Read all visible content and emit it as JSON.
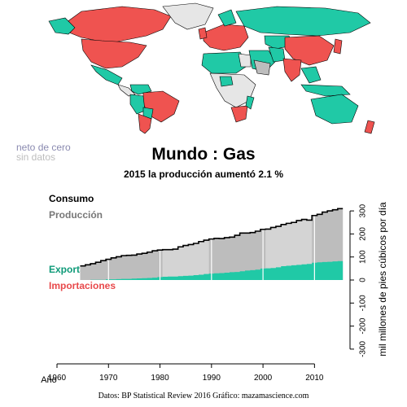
{
  "title": "Mundo :  Gas",
  "subtitle": "2015 la producción aumentó 2.1 %",
  "legend": {
    "net_zero": "neto de cero",
    "no_data": "sin datos"
  },
  "series_labels": {
    "consumption": "Consumo",
    "production": "Producción",
    "exports": "Exportaciones",
    "imports": "Importaciones"
  },
  "source": "Datos: BP Statistical Review 2016   Gráfico: mazamascience.com",
  "colors": {
    "exports": "#20c9a6",
    "imports": "#ef5350",
    "production": "#bdbdbd",
    "production_light": "#d4d4d4",
    "consumption": "#000000",
    "net_zero": "#8a8ab0",
    "no_data": "#e6e6e6"
  },
  "chart_data": {
    "type": "area",
    "xlabel": "Año",
    "ylabel": "mil millones de pies cúbicos por día",
    "xlim": [
      1960,
      2015
    ],
    "ylim": [
      -300,
      340
    ],
    "x_ticks": [
      1960,
      1970,
      1980,
      1990,
      2000,
      2010
    ],
    "y_ticks": [
      -300,
      -200,
      -100,
      0,
      100,
      200,
      300
    ],
    "years": [
      1965,
      1966,
      1967,
      1968,
      1969,
      1970,
      1971,
      1972,
      1973,
      1974,
      1975,
      1976,
      1977,
      1978,
      1979,
      1980,
      1981,
      1982,
      1983,
      1984,
      1985,
      1986,
      1987,
      1988,
      1989,
      1990,
      1991,
      1992,
      1993,
      1994,
      1995,
      1996,
      1997,
      1998,
      1999,
      2000,
      2001,
      2002,
      2003,
      2004,
      2005,
      2006,
      2007,
      2008,
      2009,
      2010,
      2011,
      2012,
      2013,
      2014,
      2015
    ],
    "series": [
      {
        "name": "Consumo",
        "values": [
          61,
          66,
          71,
          77,
          84,
          90,
          96,
          101,
          106,
          107,
          108,
          113,
          116,
          121,
          127,
          130,
          132,
          132,
          134,
          144,
          150,
          154,
          159,
          167,
          173,
          178,
          181,
          180,
          184,
          186,
          194,
          204,
          204,
          206,
          212,
          220,
          221,
          228,
          233,
          241,
          246,
          250,
          258,
          263,
          260,
          280,
          285,
          295,
          300,
          305,
          310
        ]
      },
      {
        "name": "Producción",
        "values": [
          61,
          66,
          71,
          77,
          84,
          90,
          96,
          101,
          106,
          107,
          108,
          113,
          116,
          121,
          127,
          130,
          132,
          132,
          134,
          144,
          150,
          154,
          159,
          167,
          173,
          178,
          181,
          180,
          184,
          186,
          194,
          204,
          204,
          206,
          212,
          220,
          221,
          228,
          233,
          241,
          246,
          252,
          258,
          265,
          257,
          280,
          287,
          293,
          297,
          305,
          312
        ]
      },
      {
        "name": "Exportaciones",
        "values": [
          0,
          0,
          1,
          1,
          1,
          3,
          3,
          4,
          5,
          5,
          6,
          7,
          8,
          9,
          10,
          13,
          14,
          15,
          15,
          17,
          18,
          19,
          21,
          23,
          26,
          28,
          29,
          30,
          32,
          34,
          35,
          38,
          41,
          43,
          45,
          50,
          51,
          52,
          55,
          60,
          62,
          64,
          66,
          68,
          70,
          75,
          77,
          78,
          79,
          81,
          82
        ]
      }
    ]
  }
}
